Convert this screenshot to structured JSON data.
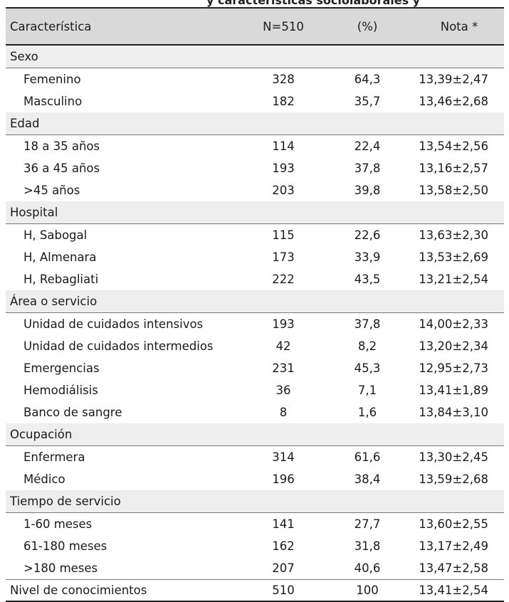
{
  "title_fragment": "y características sociolaborales y",
  "header": {
    "characteristic": "Característica",
    "n": "N=510",
    "pct": "(%)",
    "score": "Nota *"
  },
  "groups": [
    {
      "label": "Sexo",
      "rows": [
        {
          "label": "Femenino",
          "n": "328",
          "pct": "64,3",
          "score": "13,39±2,47"
        },
        {
          "label": "Masculino",
          "n": "182",
          "pct": "35,7",
          "score": "13,46±2,68"
        }
      ]
    },
    {
      "label": "Edad",
      "rows": [
        {
          "label": "18 a 35 años",
          "n": "114",
          "pct": "22,4",
          "score": "13,54±2,56"
        },
        {
          "label": "36 a 45 años",
          "n": "193",
          "pct": "37,8",
          "score": "13,16±2,57"
        },
        {
          "label": ">45 años",
          "n": "203",
          "pct": "39,8",
          "score": "13,58±2,50"
        }
      ]
    },
    {
      "label": "Hospital",
      "rows": [
        {
          "label": "H, Sabogal",
          "n": "115",
          "pct": "22,6",
          "score": "13,63±2,30"
        },
        {
          "label": "H, Almenara",
          "n": "173",
          "pct": "33,9",
          "score": "13,53±2,69"
        },
        {
          "label": "H, Rebagliati",
          "n": "222",
          "pct": "43,5",
          "score": "13,21±2,54"
        }
      ]
    },
    {
      "label": "Área o servicio",
      "rows": [
        {
          "label": "Unidad de cuidados intensivos",
          "n": "193",
          "pct": "37,8",
          "score": "14,00±2,33"
        },
        {
          "label": "Unidad de cuidados intermedios",
          "n": "42",
          "pct": "8,2",
          "score": "13,20±2,34"
        },
        {
          "label": "Emergencias",
          "n": "231",
          "pct": "45,3",
          "score": "12,95±2,73"
        },
        {
          "label": "Hemodiálisis",
          "n": "36",
          "pct": "7,1",
          "score": "13,41±1,89"
        },
        {
          "label": "Banco de sangre",
          "n": "8",
          "pct": "1,6",
          "score": "13,84±3,10"
        }
      ]
    },
    {
      "label": "Ocupación",
      "rows": [
        {
          "label": "Enfermera",
          "n": "314",
          "pct": "61,6",
          "score": "13,30±2,45"
        },
        {
          "label": "Médico",
          "n": "196",
          "pct": "38,4",
          "score": "13,59±2,68"
        }
      ]
    },
    {
      "label": "Tiempo de servicio",
      "rows": [
        {
          "label": "1-60 meses",
          "n": "141",
          "pct": "27,7",
          "score": "13,60±2,55"
        },
        {
          "label": "61-180 meses",
          "n": "162",
          "pct": "31,8",
          "score": "13,17±2,49"
        },
        {
          "label": ">180 meses",
          "n": "207",
          "pct": "40,6",
          "score": "13,47±2,58"
        }
      ]
    }
  ],
  "total": {
    "label": "Nivel de conocimientos",
    "n": "510",
    "pct": "100",
    "score": "13,41±2,54"
  }
}
